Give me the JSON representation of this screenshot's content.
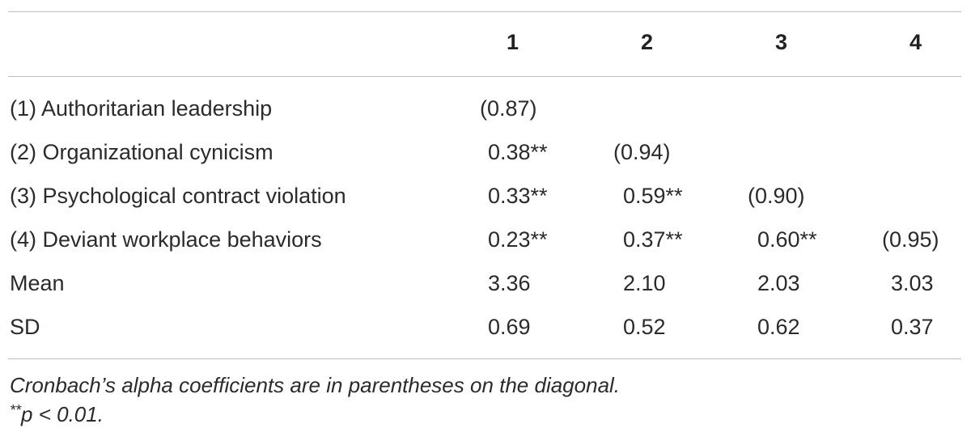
{
  "table": {
    "columns": [
      "1",
      "2",
      "3",
      "4"
    ],
    "rows": [
      {
        "label": "(1) Authoritarian leadership",
        "cells": [
          "(0.87)",
          "",
          "",
          ""
        ]
      },
      {
        "label": "(2) Organizational cynicism",
        "cells": [
          "0.38**",
          "(0.94)",
          "",
          ""
        ]
      },
      {
        "label": "(3) Psychological contract violation",
        "cells": [
          "0.33**",
          "0.59**",
          "(0.90)",
          ""
        ]
      },
      {
        "label": "(4) Deviant workplace behaviors",
        "cells": [
          "0.23**",
          "0.37**",
          "0.60**",
          "(0.95)"
        ]
      },
      {
        "label": "Mean",
        "cells": [
          "3.36",
          "2.10",
          "2.03",
          "3.03"
        ]
      },
      {
        "label": "SD",
        "cells": [
          "0.69",
          "0.52",
          "0.62",
          "0.37"
        ]
      }
    ]
  },
  "notes": {
    "line1": "Cronbach’s alpha coefficients are in parentheses on the diagonal.",
    "line2_sup": "**",
    "line2": "p < 0.01."
  }
}
